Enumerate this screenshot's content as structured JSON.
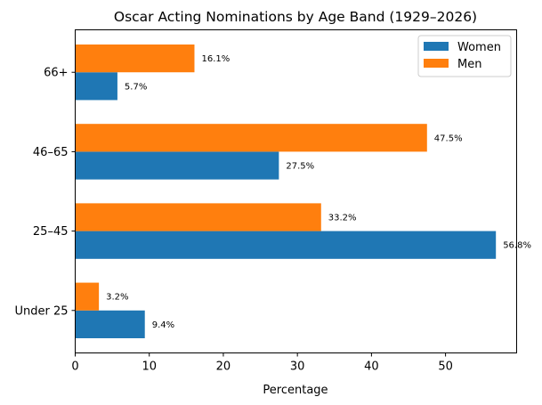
{
  "chart_data": {
    "type": "bar",
    "orientation": "horizontal",
    "title": "Oscar Acting Nominations by Age Band (1929–2026)",
    "xlabel": "Percentage",
    "ylabel": "",
    "categories": [
      "Under 25",
      "25–45",
      "46–65",
      "66+"
    ],
    "xlim": [
      0,
      59.6
    ],
    "xticks": [
      0,
      10,
      20,
      30,
      40,
      50
    ],
    "grid": false,
    "legend_position": "top-right",
    "series": [
      {
        "name": "Women",
        "color": "#1f77b4",
        "values": [
          9.4,
          56.8,
          27.5,
          5.7
        ],
        "labels": [
          "9.4%",
          "56.8%",
          "27.5%",
          "5.7%"
        ]
      },
      {
        "name": "Men",
        "color": "#ff7f0e",
        "values": [
          3.2,
          33.2,
          47.5,
          16.1
        ],
        "labels": [
          "3.2%",
          "33.2%",
          "47.5%",
          "16.1%"
        ]
      }
    ]
  }
}
